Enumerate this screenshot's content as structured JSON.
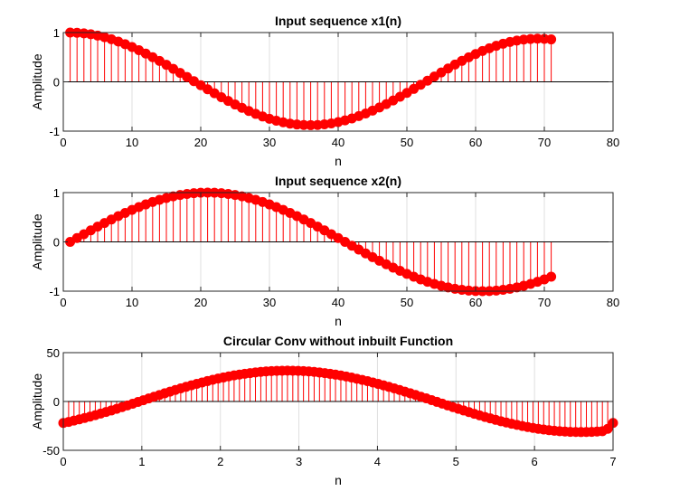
{
  "chart_data": [
    {
      "type": "stem",
      "title": "Input sequence x1(n)",
      "xlabel": "n",
      "ylabel": "Amplitude",
      "xlim": [
        0,
        80
      ],
      "ylim": [
        -1,
        1
      ],
      "xticks": [
        "0",
        "10",
        "20",
        "30",
        "40",
        "50",
        "60",
        "70",
        "80"
      ],
      "yticks": [
        "-1",
        "0",
        "1"
      ],
      "grid": "vertical",
      "color": "#ff0000",
      "baseline_color": "#000000",
      "series": [
        {
          "x_start": 1,
          "x_end": 71,
          "values": [
            1.0,
            0.9961,
            0.9846,
            0.9654,
            0.9389,
            0.9052,
            0.8646,
            0.8176,
            0.7644,
            0.7056,
            0.6416,
            0.573,
            0.5003,
            0.4242,
            0.3453,
            0.2643,
            0.1817,
            0.0983,
            0.0147,
            -0.0685,
            -0.151,
            -0.2321,
            -0.3111,
            -0.3872,
            -0.4598,
            -0.5282,
            -0.5918,
            -0.6502,
            -0.7028,
            -0.7492,
            -0.789,
            -0.8218,
            -0.8475,
            -0.8657,
            -0.8764,
            -0.8795,
            -0.875,
            -0.8629,
            -0.8434,
            -0.8167,
            -0.7829,
            -0.7423,
            -0.6954,
            -0.6424,
            -0.5838,
            -0.5201,
            -0.4517,
            -0.3792,
            -0.3032,
            -0.2243,
            -0.1431,
            -0.0602,
            0.0236,
            0.1074,
            0.1903,
            0.2715,
            0.3502,
            0.4257,
            0.4972,
            0.564,
            0.6255,
            0.6812,
            0.7306,
            0.7733,
            0.8089,
            0.8371,
            0.8577,
            0.8704,
            0.8753,
            0.8723,
            0.8614
          ]
        }
      ]
    },
    {
      "type": "stem",
      "title": "Input sequence x2(n)",
      "xlabel": "n",
      "ylabel": "Amplitude",
      "xlim": [
        0,
        80
      ],
      "ylim": [
        -1,
        1
      ],
      "xticks": [
        "0",
        "10",
        "20",
        "30",
        "40",
        "50",
        "60",
        "70",
        "80"
      ],
      "yticks": [
        "-1",
        "0",
        "1"
      ],
      "grid": "vertical",
      "color": "#ff0000",
      "baseline_color": "#000000",
      "series": [
        {
          "x_start": 1,
          "x_end": 71,
          "values": [
            0.0,
            0.0785,
            0.1564,
            0.2334,
            0.309,
            0.3827,
            0.454,
            0.5225,
            0.5878,
            0.6494,
            0.7071,
            0.7604,
            0.809,
            0.8526,
            0.891,
            0.9239,
            0.9511,
            0.9724,
            0.9877,
            0.9969,
            1.0,
            0.9969,
            0.9877,
            0.9724,
            0.9511,
            0.9239,
            0.891,
            0.8526,
            0.809,
            0.7604,
            0.7071,
            0.6494,
            0.5878,
            0.5225,
            0.454,
            0.3827,
            0.309,
            0.2334,
            0.1564,
            0.0785,
            0.0,
            -0.0785,
            -0.1564,
            -0.2334,
            -0.309,
            -0.3827,
            -0.454,
            -0.5225,
            -0.5878,
            -0.6494,
            -0.7071,
            -0.7604,
            -0.809,
            -0.8526,
            -0.891,
            -0.9239,
            -0.9511,
            -0.9724,
            -0.9877,
            -0.9969,
            -1.0,
            -0.9969,
            -0.9877,
            -0.9724,
            -0.9511,
            -0.9239,
            -0.891,
            -0.8526,
            -0.809,
            -0.7604,
            -0.7071
          ]
        }
      ]
    },
    {
      "type": "stem",
      "title": "Circular Conv without inbuilt Function",
      "xlabel": "n",
      "ylabel": "Amplitude",
      "xlim": [
        0,
        7
      ],
      "ylim": [
        -50,
        50
      ],
      "xticks": [
        "0",
        "1",
        "2",
        "3",
        "4",
        "5",
        "6",
        "7"
      ],
      "yticks": [
        "-50",
        "0",
        "50"
      ],
      "grid": "vertical",
      "color": "#ff0000",
      "baseline_color": "#000000",
      "series": [
        {
          "x_start": 0,
          "x_end": 7,
          "values": [
            -22.0,
            -20.9,
            -19.6,
            -18.3,
            -16.9,
            -15.5,
            -14.0,
            -12.4,
            -10.8,
            -9.2,
            -7.5,
            -5.8,
            -4.0,
            -2.3,
            -0.5,
            1.3,
            3.1,
            4.9,
            6.6,
            8.4,
            10.1,
            11.8,
            13.4,
            15.0,
            16.6,
            18.1,
            19.5,
            20.9,
            22.2,
            23.5,
            24.6,
            25.7,
            26.7,
            27.6,
            28.4,
            29.1,
            29.8,
            30.3,
            30.8,
            31.1,
            31.4,
            31.5,
            31.6,
            31.5,
            31.4,
            31.1,
            30.8,
            30.3,
            29.7,
            29.1,
            28.3,
            27.5,
            26.6,
            25.6,
            24.5,
            23.3,
            22.1,
            20.8,
            19.4,
            18.0,
            16.5,
            15.0,
            13.4,
            11.8,
            10.1,
            8.4,
            6.7,
            4.9,
            3.2,
            1.4,
            -0.4,
            -2.2,
            -4.0,
            -5.8,
            -7.5,
            -9.2,
            -10.9,
            -12.6,
            -14.2,
            -15.8,
            -17.3,
            -18.8,
            -20.2,
            -21.5,
            -22.8,
            -24.0,
            -25.1,
            -26.2,
            -27.1,
            -28.0,
            -28.7,
            -29.4,
            -30.0,
            -30.4,
            -30.8,
            -31.1,
            -31.2,
            -31.3,
            -31.2,
            -31.1,
            -30.8,
            -30.4,
            -28.0,
            -22.0
          ]
        }
      ]
    }
  ]
}
